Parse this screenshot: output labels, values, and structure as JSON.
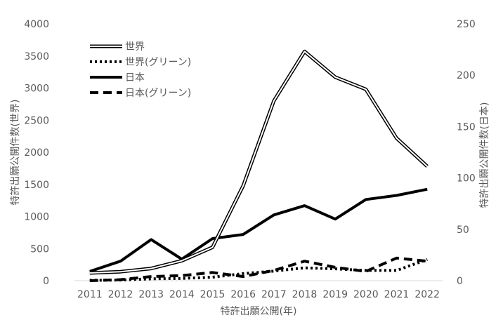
{
  "chart_data": {
    "type": "line",
    "title": "",
    "xlabel": "特許出願公開(年)",
    "ylabel_left": "特許出願公開件数(世界)",
    "ylabel_right": "特許出願公開件数(日本)",
    "ylim_left": [
      0,
      4000
    ],
    "ylim_right": [
      0,
      250
    ],
    "yticks_left": [
      0,
      500,
      1000,
      1500,
      2000,
      2500,
      3000,
      3500,
      4000
    ],
    "yticks_right": [
      0,
      50,
      100,
      150,
      200,
      250
    ],
    "grid": false,
    "legend_position": "top-left",
    "x": [
      "2011",
      "2012",
      "2013",
      "2014",
      "2015",
      "2016",
      "2017",
      "2018",
      "2019",
      "2020",
      "2021",
      "2022"
    ],
    "series": [
      {
        "name": "世界",
        "axis": "left",
        "style": "double",
        "color": "#000000",
        "values": [
          120,
          140,
          190,
          310,
          520,
          1480,
          2800,
          3570,
          3170,
          2980,
          2220,
          1780
        ]
      },
      {
        "name": "世界(グリーン)",
        "axis": "left",
        "style": "dotted",
        "color": "#000000",
        "values": [
          5,
          10,
          30,
          35,
          55,
          110,
          150,
          200,
          185,
          160,
          160,
          330
        ]
      },
      {
        "name": "日本",
        "axis": "right",
        "style": "solid",
        "color": "#000000",
        "values": [
          9,
          19,
          40,
          21,
          41,
          45,
          64,
          73,
          60,
          79,
          83,
          89
        ]
      },
      {
        "name": "日本(グリーン)",
        "axis": "right",
        "style": "dashed",
        "color": "#000000",
        "values": [
          0,
          1,
          4,
          5,
          8,
          4,
          10,
          19,
          13,
          9,
          22,
          19
        ]
      }
    ]
  }
}
